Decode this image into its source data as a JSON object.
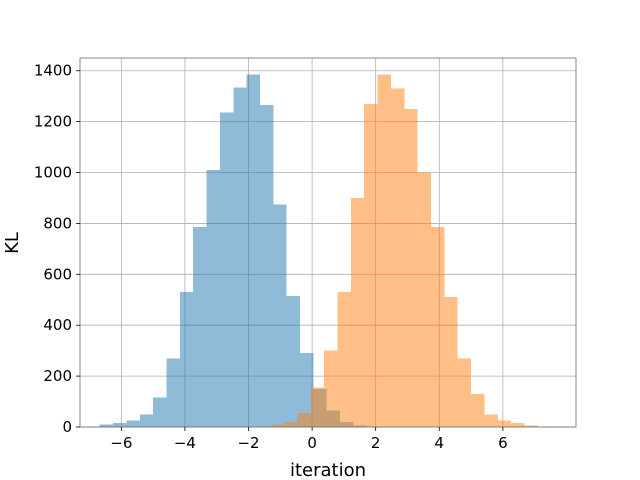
{
  "chart_data": {
    "type": "bar",
    "subtype": "overlaid histogram",
    "title": "",
    "xlabel": "iteration",
    "ylabel": "KL",
    "xlim": [
      -7.3,
      8.3
    ],
    "ylim": [
      0,
      1450
    ],
    "xticks": [
      "−6",
      "−4",
      "−2",
      "0",
      "2",
      "4",
      "6"
    ],
    "xtick_values": [
      -6,
      -4,
      -2,
      0,
      2,
      4,
      6
    ],
    "yticks": [
      "0",
      "200",
      "400",
      "600",
      "800",
      "1000",
      "1200",
      "1400"
    ],
    "ytick_values": [
      0,
      200,
      400,
      600,
      800,
      1000,
      1200,
      1400
    ],
    "grid": true,
    "bin_width": 0.42,
    "series": [
      {
        "color": "#1f77b4",
        "alpha": 0.5,
        "bin_left_edges": [
          -6.68,
          -6.26,
          -5.84,
          -5.42,
          -5.0,
          -4.58,
          -4.16,
          -3.74,
          -3.32,
          -2.9,
          -2.48,
          -2.06,
          -1.64,
          -1.22,
          -0.8,
          -0.38,
          0.04,
          0.46,
          0.88,
          1.3,
          1.72
        ],
        "values": [
          10,
          15,
          25,
          50,
          115,
          270,
          530,
          785,
          1010,
          1235,
          1335,
          1385,
          1265,
          875,
          515,
          290,
          150,
          65,
          20,
          5,
          2
        ]
      },
      {
        "color": "#ff7f0e",
        "alpha": 0.5,
        "bin_left_edges": [
          -1.3,
          -0.88,
          -0.46,
          -0.04,
          0.38,
          0.8,
          1.22,
          1.64,
          2.06,
          2.48,
          2.9,
          3.32,
          3.74,
          4.16,
          4.58,
          5.0,
          5.42,
          5.84,
          6.26,
          6.68
        ],
        "values": [
          10,
          20,
          55,
          155,
          300,
          530,
          900,
          1270,
          1385,
          1330,
          1250,
          1000,
          785,
          510,
          270,
          130,
          50,
          25,
          15,
          5
        ]
      }
    ]
  }
}
